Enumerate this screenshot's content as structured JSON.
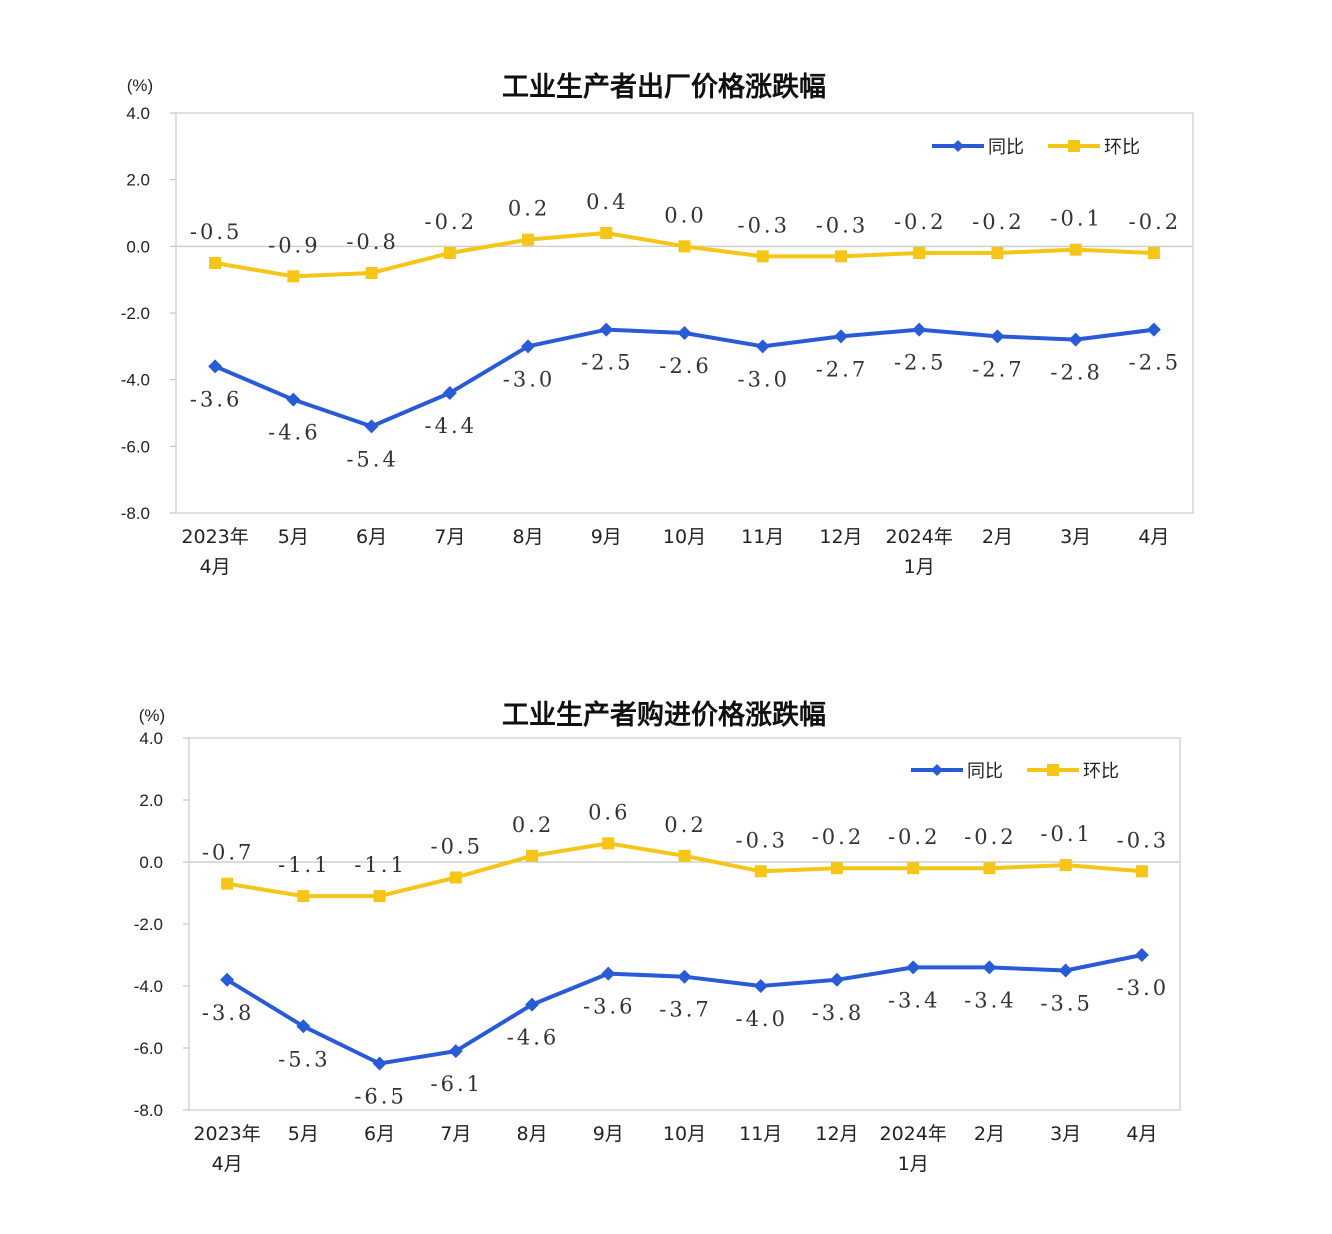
{
  "chart_data": [
    {
      "type": "line",
      "title": "工业生产者出厂价格涨跌幅",
      "unit": "(%)",
      "categories": [
        [
          "2023年",
          "4月"
        ],
        [
          "5月"
        ],
        [
          "6月"
        ],
        [
          "7月"
        ],
        [
          "8月"
        ],
        [
          "9月"
        ],
        [
          "10月"
        ],
        [
          "11月"
        ],
        [
          "12月"
        ],
        [
          "2024年",
          "1月"
        ],
        [
          "2月"
        ],
        [
          "3月"
        ],
        [
          "4月"
        ]
      ],
      "ylim": [
        -8.0,
        4.0
      ],
      "yticks": [
        "4.0",
        "2.0",
        "0.0",
        "-2.0",
        "-4.0",
        "-6.0",
        "-8.0"
      ],
      "legend_position": "top-right",
      "series": [
        {
          "name": "同比",
          "color": "#2a5bd7",
          "marker": "diamond",
          "values": [
            -3.6,
            -4.6,
            -5.4,
            -4.4,
            -3.0,
            -2.5,
            -2.6,
            -3.0,
            -2.7,
            -2.5,
            -2.7,
            -2.8,
            -2.5
          ],
          "labels": [
            "-3.6",
            "-4.6",
            "-5.4",
            "-4.4",
            "-3.0",
            "-2.5",
            "-2.6",
            "-3.0",
            "-2.7",
            "-2.5",
            "-2.7",
            "-2.8",
            "-2.5"
          ]
        },
        {
          "name": "环比",
          "color": "#f5c518",
          "marker": "square",
          "values": [
            -0.5,
            -0.9,
            -0.8,
            -0.2,
            0.2,
            0.4,
            0.0,
            -0.3,
            -0.3,
            -0.2,
            -0.2,
            -0.1,
            -0.2
          ],
          "labels": [
            "-0.5",
            "-0.9",
            "-0.8",
            "-0.2",
            "0.2",
            "0.4",
            "0.0",
            "-0.3",
            "-0.3",
            "-0.2",
            "-0.2",
            "-0.1",
            "-0.2"
          ]
        }
      ]
    },
    {
      "type": "line",
      "title": "工业生产者购进价格涨跌幅",
      "unit": "(%)",
      "categories": [
        [
          "2023年",
          "4月"
        ],
        [
          "5月"
        ],
        [
          "6月"
        ],
        [
          "7月"
        ],
        [
          "8月"
        ],
        [
          "9月"
        ],
        [
          "10月"
        ],
        [
          "11月"
        ],
        [
          "12月"
        ],
        [
          "2024年",
          "1月"
        ],
        [
          "2月"
        ],
        [
          "3月"
        ],
        [
          "4月"
        ]
      ],
      "ylim": [
        -8.0,
        4.0
      ],
      "yticks": [
        "4.0",
        "2.0",
        "0.0",
        "-2.0",
        "-4.0",
        "-6.0",
        "-8.0"
      ],
      "legend_position": "top-right",
      "series": [
        {
          "name": "同比",
          "color": "#2a5bd7",
          "marker": "diamond",
          "values": [
            -3.8,
            -5.3,
            -6.5,
            -6.1,
            -4.6,
            -3.6,
            -3.7,
            -4.0,
            -3.8,
            -3.4,
            -3.4,
            -3.5,
            -3.0
          ],
          "labels": [
            "-3.8",
            "-5.3",
            "-6.5",
            "-6.1",
            "-4.6",
            "-3.6",
            "-3.7",
            "-4.0",
            "-3.8",
            "-3.4",
            "-3.4",
            "-3.5",
            "-3.0"
          ]
        },
        {
          "name": "环比",
          "color": "#f5c518",
          "marker": "square",
          "values": [
            -0.7,
            -1.1,
            -1.1,
            -0.5,
            0.2,
            0.6,
            0.2,
            -0.3,
            -0.2,
            -0.2,
            -0.2,
            -0.1,
            -0.3
          ],
          "labels": [
            "-0.7",
            "-1.1",
            "-1.1",
            "-0.5",
            "0.2",
            "0.6",
            "0.2",
            "-0.3",
            "-0.2",
            "-0.2",
            "-0.2",
            "-0.1",
            "-0.3"
          ]
        }
      ]
    }
  ]
}
